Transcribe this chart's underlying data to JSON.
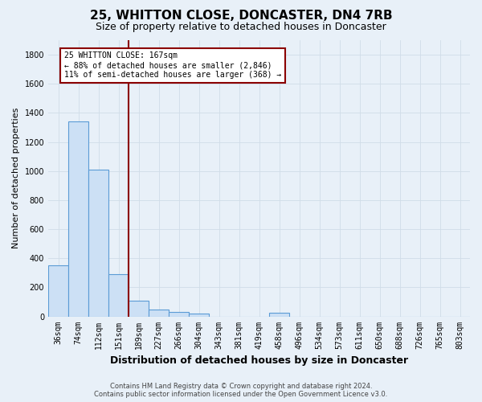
{
  "title": "25, WHITTON CLOSE, DONCASTER, DN4 7RB",
  "subtitle": "Size of property relative to detached houses in Doncaster",
  "xlabel": "Distribution of detached houses by size in Doncaster",
  "ylabel": "Number of detached properties",
  "footer_line1": "Contains HM Land Registry data © Crown copyright and database right 2024.",
  "footer_line2": "Contains public sector information licensed under the Open Government Licence v3.0.",
  "categories": [
    "36sqm",
    "74sqm",
    "112sqm",
    "151sqm",
    "189sqm",
    "227sqm",
    "266sqm",
    "304sqm",
    "343sqm",
    "381sqm",
    "419sqm",
    "458sqm",
    "496sqm",
    "534sqm",
    "573sqm",
    "611sqm",
    "650sqm",
    "688sqm",
    "726sqm",
    "765sqm",
    "803sqm"
  ],
  "values": [
    350,
    1340,
    1010,
    290,
    110,
    50,
    30,
    20,
    0,
    0,
    0,
    25,
    0,
    0,
    0,
    0,
    0,
    0,
    0,
    0,
    0
  ],
  "bar_color": "#cce0f5",
  "bar_edge_color": "#5b9bd5",
  "vline_x": 3.5,
  "vline_color": "#8b0000",
  "ylim": [
    0,
    1900
  ],
  "yticks": [
    0,
    200,
    400,
    600,
    800,
    1000,
    1200,
    1400,
    1600,
    1800
  ],
  "annotation_text": "25 WHITTON CLOSE: 167sqm\n← 88% of detached houses are smaller (2,846)\n11% of semi-detached houses are larger (368) →",
  "bg_color": "#e8f0f8",
  "grid_color": "#d0dce8",
  "title_fontsize": 11,
  "subtitle_fontsize": 9,
  "tick_fontsize": 7,
  "ylabel_fontsize": 8,
  "xlabel_fontsize": 9,
  "footer_fontsize": 6,
  "ann_fontsize": 7
}
